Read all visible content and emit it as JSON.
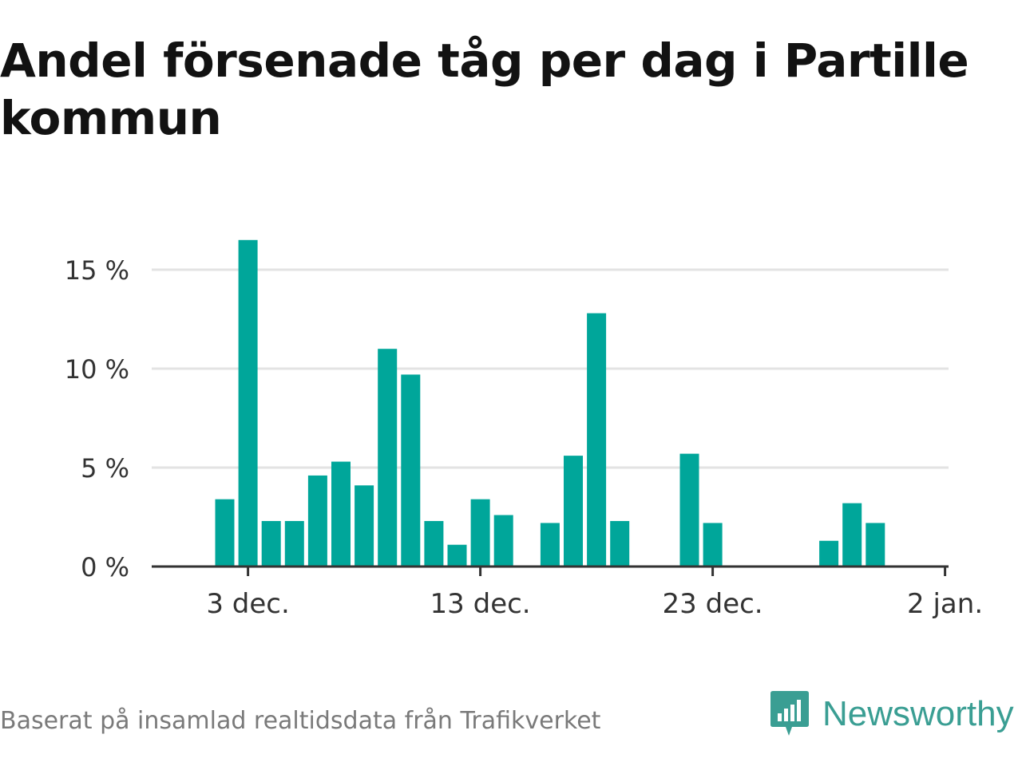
{
  "title": "Andel försenade tåg per dag i Partille kommun",
  "source": "Baserat på insamlad realtidsdata från Trafikverket",
  "brand": {
    "name": "Newsworthy",
    "color": "#3a9e93",
    "icon": "newsworthy-chat-bars-icon"
  },
  "bar_color": "#00a69a",
  "chart_data": {
    "type": "bar",
    "title": "Andel försenade tåg per dag i Partille kommun",
    "xlabel": "",
    "ylabel": "",
    "ylim": [
      0,
      15
    ],
    "y_ticks": [
      0,
      5,
      10,
      15
    ],
    "y_tick_labels": [
      "0 %",
      "5 %",
      "10 %",
      "15 %"
    ],
    "x_tick_labels": [
      "3 dec.",
      "13 dec.",
      "23 dec.",
      "2 jan."
    ],
    "grid": true,
    "categories": [
      "2 dec.",
      "3 dec.",
      "4 dec.",
      "5 dec.",
      "6 dec.",
      "7 dec.",
      "8 dec.",
      "9 dec.",
      "10 dec.",
      "11 dec.",
      "12 dec.",
      "13 dec.",
      "14 dec.",
      "15 dec.",
      "16 dec.",
      "17 dec.",
      "18 dec.",
      "19 dec.",
      "20 dec.",
      "21 dec.",
      "22 dec.",
      "23 dec.",
      "24 dec.",
      "25 dec.",
      "26 dec.",
      "27 dec.",
      "28 dec.",
      "29 dec.",
      "30 dec.",
      "31 dec."
    ],
    "values": [
      3.4,
      16.5,
      2.3,
      2.3,
      4.6,
      5.3,
      4.1,
      11.0,
      9.7,
      2.3,
      1.1,
      3.4,
      2.6,
      0,
      2.2,
      5.6,
      12.8,
      2.3,
      0,
      0,
      5.7,
      2.2,
      0,
      0,
      0,
      0,
      1.3,
      3.2,
      2.2,
      0
    ]
  }
}
